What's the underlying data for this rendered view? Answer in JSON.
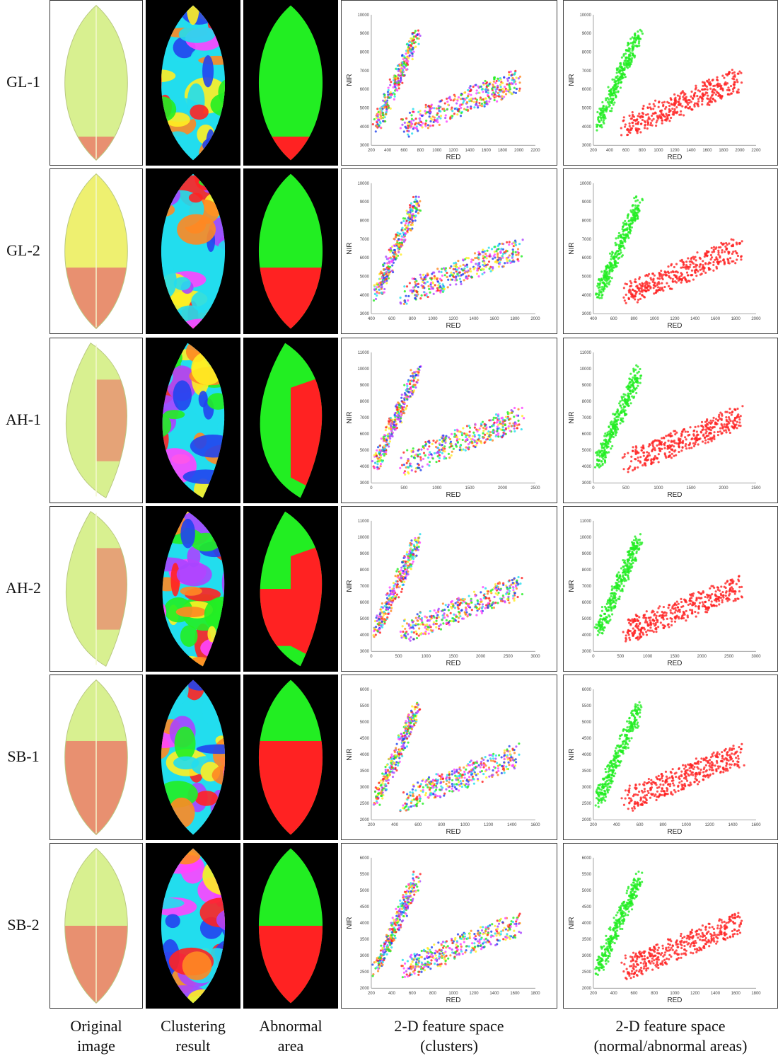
{
  "rows": [
    {
      "label": "GL-1",
      "abnormal_split": 0.83,
      "shape": "ellipse",
      "plot": {
        "xticks": [
          "200",
          "400",
          "600",
          "800",
          "1000",
          "1200",
          "1400",
          "1600",
          "1800",
          "2000",
          "2200"
        ],
        "yticks": [
          "3000",
          "4000",
          "5000",
          "6000",
          "7000",
          "8000",
          "9000",
          "10000"
        ],
        "xmin": 200,
        "xmax": 2200,
        "ymin": 3000,
        "ymax": 10000
      }
    },
    {
      "label": "GL-2",
      "abnormal_split": 0.6,
      "shape": "ellipse",
      "plot": {
        "xticks": [
          "400",
          "600",
          "800",
          "1000",
          "1200",
          "1400",
          "1600",
          "1800",
          "2000"
        ],
        "yticks": [
          "3000",
          "4000",
          "5000",
          "6000",
          "7000",
          "8000",
          "9000",
          "10000"
        ],
        "xmin": 400,
        "xmax": 2000,
        "ymin": 3000,
        "ymax": 10000
      }
    },
    {
      "label": "AH-1",
      "abnormal_split": 0.5,
      "shape": "tilted",
      "plot": {
        "xticks": [
          "0",
          "500",
          "1000",
          "1500",
          "2000",
          "2500"
        ],
        "yticks": [
          "3000",
          "4000",
          "5000",
          "6000",
          "7000",
          "8000",
          "9000",
          "10000",
          "11000"
        ],
        "xmin": 0,
        "xmax": 2500,
        "ymin": 3000,
        "ymax": 11000
      }
    },
    {
      "label": "AH-2",
      "abnormal_split": 0.5,
      "shape": "tilted",
      "plot": {
        "xticks": [
          "0",
          "500",
          "1000",
          "1500",
          "2000",
          "2500",
          "3000"
        ],
        "yticks": [
          "3000",
          "4000",
          "5000",
          "6000",
          "7000",
          "8000",
          "9000",
          "10000",
          "11000"
        ],
        "xmin": 0,
        "xmax": 3000,
        "ymin": 3000,
        "ymax": 11000
      }
    },
    {
      "label": "SB-1",
      "abnormal_split": 0.4,
      "shape": "ellipse",
      "plot": {
        "xticks": [
          "200",
          "400",
          "600",
          "800",
          "1000",
          "1200",
          "1400",
          "1600"
        ],
        "yticks": [
          "2000",
          "2500",
          "3000",
          "3500",
          "4000",
          "4500",
          "5000",
          "5500",
          "6000"
        ],
        "xmin": 200,
        "xmax": 1600,
        "ymin": 2000,
        "ymax": 6000
      }
    },
    {
      "label": "SB-2",
      "abnormal_split": 0.5,
      "shape": "ellipse",
      "plot": {
        "xticks": [
          "200",
          "400",
          "600",
          "800",
          "1000",
          "1200",
          "1400",
          "1600",
          "1800"
        ],
        "yticks": [
          "2000",
          "2500",
          "3000",
          "3500",
          "4000",
          "4500",
          "5000",
          "5500",
          "6000"
        ],
        "xmin": 200,
        "xmax": 1800,
        "ymin": 2000,
        "ymax": 6000
      }
    }
  ],
  "axis": {
    "xlabel": "RED",
    "ylabel": "NIR"
  },
  "columns": [
    {
      "line1": "Original",
      "line2": "image"
    },
    {
      "line1": "Clustering",
      "line2": "result"
    },
    {
      "line1": "Abnormal",
      "line2": "area"
    },
    {
      "line1": "2-D feature space",
      "line2": "(clusters)"
    },
    {
      "line1": "2-D feature space",
      "line2": "(normal/abnormal areas)"
    }
  ],
  "colors": {
    "normal": "#22ee22",
    "abnormal": "#ff2222",
    "leaf_healthy": "#d8f090",
    "leaf_yellow": "#eef070",
    "leaf_damage": "#e89070",
    "clusters": [
      "#ff44ff",
      "#2244ee",
      "#22ddee",
      "#22ee22",
      "#ff8822",
      "#ffee22",
      "#aa44ff",
      "#ff2222"
    ]
  }
}
